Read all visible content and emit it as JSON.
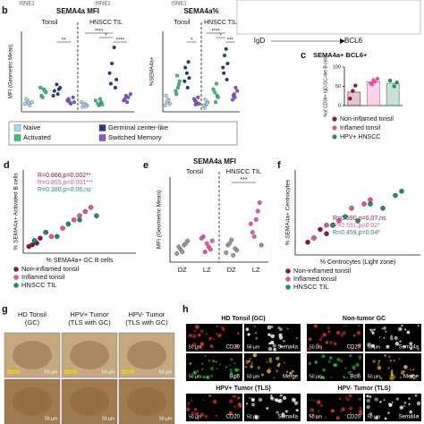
{
  "top": {
    "tsne": [
      "tSNE1",
      "tSNE1",
      "tSNE1"
    ],
    "markers": [
      "IgD",
      "BCL6"
    ]
  },
  "b": {
    "letter": "b",
    "groups": [
      "Tonsil",
      "HNSCC TIL"
    ],
    "legend": [
      "Naive",
      "Activated",
      "Germinal center-like",
      "Switched Memory"
    ],
    "colors": [
      "#a8d8ea",
      "#3dbf7a",
      "#1e3f8a",
      "#8b55c9"
    ],
    "plots": [
      {
        "title": "SEMA4a MFI",
        "ylabel": "MFI (Geometric Mean)",
        "ylim": [
          0,
          100
        ],
        "columns": [
          [
            10,
            14,
            8,
            12,
            16,
            11
          ],
          [
            20,
            28,
            24,
            30,
            18,
            26
          ],
          [
            22,
            30,
            26,
            34,
            28,
            20
          ],
          [
            12,
            16,
            10,
            18,
            14,
            12
          ],
          [
            6,
            10,
            8,
            12,
            9,
            7
          ],
          [
            8,
            12,
            14,
            10,
            16,
            9
          ],
          [
            30,
            48,
            60,
            80,
            40,
            35
          ],
          [
            14,
            20,
            18,
            22,
            16,
            12
          ]
        ],
        "sig": [
          "**",
          "****",
          "*",
          "****"
        ]
      },
      {
        "title": "SEMA4a%",
        "ylabel": "%SEMA4a+",
        "ylim": [
          0,
          100
        ],
        "columns": [
          [
            8,
            12,
            15,
            10,
            20,
            14
          ],
          [
            22,
            30,
            38,
            26,
            45,
            34
          ],
          [
            30,
            42,
            55,
            48,
            62,
            38
          ],
          [
            10,
            14,
            12,
            18,
            16,
            9
          ],
          [
            5,
            9,
            12,
            8,
            15,
            10
          ],
          [
            12,
            20,
            28,
            24,
            35,
            18
          ],
          [
            40,
            55,
            70,
            78,
            60,
            48
          ],
          [
            15,
            22,
            30,
            26,
            20,
            18
          ]
        ],
        "sig": [
          "*",
          "***",
          "*",
          "****"
        ]
      }
    ]
  },
  "c": {
    "letter": "c",
    "title": "SEMA4a+ BCL6+",
    "ylabel": "%of CD38+ IgD-GC-like B cells",
    "ylim": [
      0,
      100
    ],
    "yticks": [
      0,
      50,
      100
    ],
    "bars": [
      {
        "name": "Non-inflamed tonsil",
        "color": "#8b1a3a",
        "value": 35,
        "points": [
          18,
          38,
          52
        ]
      },
      {
        "name": "Inflamed tonsil",
        "color": "#e0559a",
        "value": 62,
        "points": [
          55,
          62,
          70,
          58,
          66
        ]
      },
      {
        "name": "HPV+ HNSCC",
        "color": "#2a8a5a",
        "value": 58,
        "points": [
          50,
          60,
          65
        ]
      }
    ]
  },
  "d": {
    "letter": "d",
    "ylabel": "% SEMA4a+ Activated B cells",
    "xlabel": "% SEMA4a+ GC B cells",
    "xlim": [
      0,
      100
    ],
    "ylim": [
      0,
      100
    ],
    "series": [
      {
        "name": "Non-inflamed tonsil",
        "color": "#8b1a3a",
        "stat": "R=0.866,p=0.002**",
        "x": [
          5,
          8,
          10,
          15,
          20,
          12
        ],
        "y": [
          8,
          10,
          15,
          18,
          25,
          12
        ]
      },
      {
        "name": "Inflamed tonsil",
        "color": "#e0559a",
        "stat": "R=0.855,p<0.001***",
        "x": [
          25,
          35,
          45,
          55,
          60,
          50,
          40
        ],
        "y": [
          20,
          30,
          40,
          50,
          55,
          45,
          35
        ]
      },
      {
        "name": "HNSCC TIL",
        "color": "#2a8a5a",
        "stat": "R=0.380,p=0.06,ns",
        "x": [
          10,
          20,
          30,
          40,
          50,
          65
        ],
        "y": [
          15,
          25,
          20,
          35,
          40,
          45
        ]
      }
    ]
  },
  "e": {
    "letter": "e",
    "title": "SEMA4a MFI",
    "groups": [
      "Tonsil",
      "HNSCC TIL"
    ],
    "ylabel": "MFI (Geometric Mean)",
    "ylim": [
      0,
      100
    ],
    "sig": "***",
    "columns": [
      {
        "label": "DZ",
        "color": "#9a9a9a",
        "values": [
          10,
          15,
          20,
          25,
          18,
          12,
          22
        ]
      },
      {
        "label": "LZ",
        "color": "#e55aa8",
        "values": [
          12,
          18,
          25,
          30,
          22,
          15,
          28
        ]
      },
      {
        "label": "DZ",
        "color": "#9a9a9a",
        "values": [
          8,
          14,
          20,
          26,
          16,
          11,
          22
        ]
      },
      {
        "label": "LZ",
        "color": "#e55aa8",
        "values": [
          20,
          35,
          50,
          70,
          45,
          30,
          60
        ]
      }
    ]
  },
  "f": {
    "letter": "f",
    "ylabel": "% SEMA4a+ Centrocytes",
    "xlabel": "% Centrocytes (Light zone)",
    "xlim": [
      0,
      100
    ],
    "ylim": [
      0,
      100
    ],
    "series": [
      {
        "name": "Non-inflamed tonsil",
        "color": "#8b1a3a",
        "stat": "R=0.690,p=0.07,ns",
        "x": [
          10,
          15,
          20,
          25,
          30
        ],
        "y": [
          15,
          20,
          30,
          25,
          35
        ]
      },
      {
        "name": "Inflamed tonsil",
        "color": "#e0559a",
        "stat": "R=0.591,p=0.02*",
        "x": [
          15,
          25,
          35,
          45,
          55,
          60
        ],
        "y": [
          20,
          35,
          40,
          55,
          60,
          65
        ]
      },
      {
        "name": "HNSCC TIL",
        "color": "#2a8a5a",
        "stat": "R=0.459,p=0.04*",
        "x": [
          30,
          40,
          50,
          60,
          70,
          80,
          85
        ],
        "y": [
          35,
          45,
          40,
          60,
          55,
          70,
          75
        ]
      }
    ]
  },
  "g": {
    "letter": "g",
    "titles": [
      [
        "HD Tonsil",
        "(GC)"
      ],
      [
        "HPV+ Tumor",
        "(TLS with GC)"
      ],
      [
        "HPV- Tumor",
        "(TLS with GC)"
      ]
    ],
    "stain": "Bcl6",
    "scale": "50 µm"
  },
  "h": {
    "letter": "h",
    "blocks": [
      "HD Tonsil (GC)",
      "Non-tumor GC",
      "HPV+ Tumor (TLS)",
      "HPV- Tumor (TLS)"
    ],
    "channels": [
      "CD20",
      "Sema4a",
      "Bcl6",
      "Merge"
    ],
    "scale": "50 µm"
  }
}
